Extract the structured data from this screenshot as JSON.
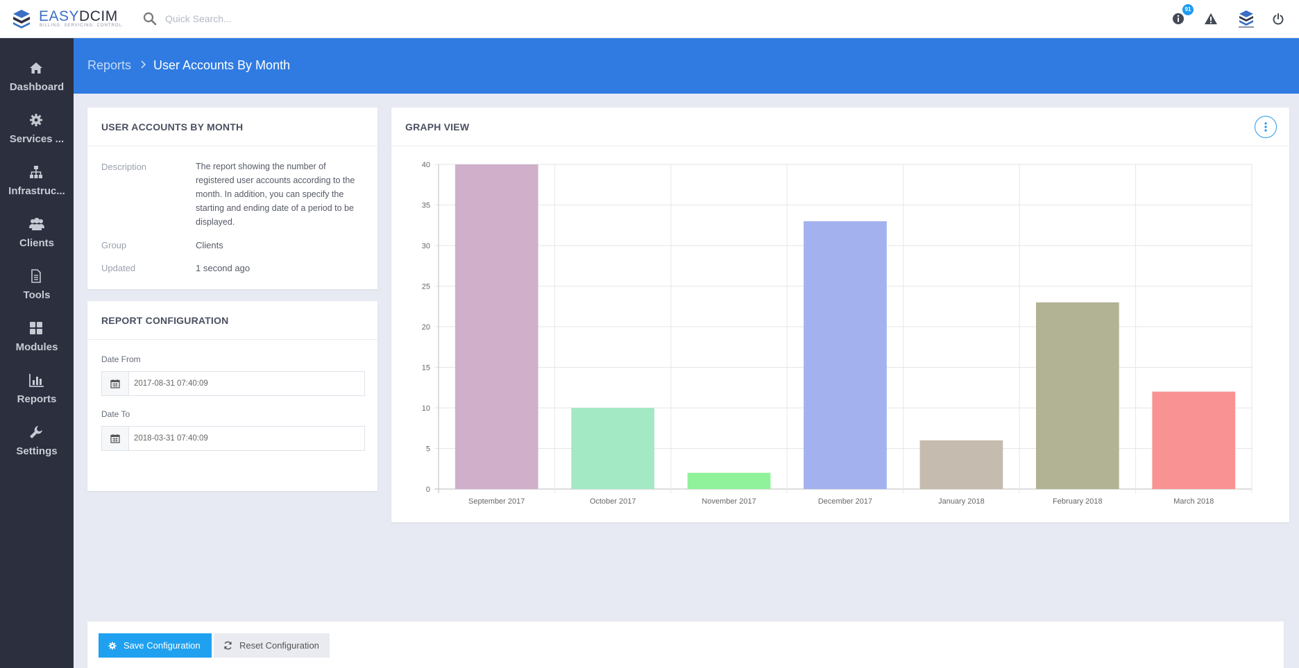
{
  "app": {
    "brand_main": "EASY",
    "brand_accent": "DCIM",
    "brand_tagline": "BILLING. SERVICING. CONTROL.",
    "search_placeholder": "Quick Search...",
    "notification_count": "91"
  },
  "sidebar": {
    "items": [
      {
        "label": "Dashboard",
        "icon": "home-icon"
      },
      {
        "label": "Services ...",
        "icon": "gear-icon"
      },
      {
        "label": "Infrastruc...",
        "icon": "sitemap-icon"
      },
      {
        "label": "Clients",
        "icon": "users-icon"
      },
      {
        "label": "Tools",
        "icon": "file-icon"
      },
      {
        "label": "Modules",
        "icon": "grid-icon"
      },
      {
        "label": "Reports",
        "icon": "bar-chart-icon"
      },
      {
        "label": "Settings",
        "icon": "wrench-icon"
      }
    ]
  },
  "breadcrumb": {
    "root": "Reports",
    "current": "User Accounts By Month"
  },
  "info_card": {
    "title": "USER ACCOUNTS BY MONTH",
    "description_label": "Description",
    "description": "The report showing the number of registered user accounts according to the month. In addition, you can specify the starting and ending date of a period to be displayed.",
    "group_label": "Group",
    "group": "Clients",
    "updated_label": "Updated",
    "updated": "1 second ago"
  },
  "config_card": {
    "title": "REPORT CONFIGURATION",
    "date_from_label": "Date From",
    "date_from": "2017-08-31 07:40:09",
    "date_to_label": "Date To",
    "date_to": "2018-03-31 07:40:09"
  },
  "graph_card": {
    "title": "GRAPH VIEW"
  },
  "chart_data": {
    "type": "bar",
    "categories": [
      "September 2017",
      "October 2017",
      "November 2017",
      "December 2017",
      "January 2018",
      "February 2018",
      "March 2018"
    ],
    "values": [
      40,
      10,
      2,
      33,
      6,
      23,
      12
    ],
    "colors": [
      "#cfafca",
      "#a3e9c4",
      "#90f29a",
      "#a3b2ee",
      "#c5bbae",
      "#b2b295",
      "#f99393"
    ],
    "ylim": [
      0,
      40
    ],
    "yticks": [
      0,
      5,
      10,
      15,
      20,
      25,
      30,
      35,
      40
    ],
    "grid": true,
    "title": "",
    "xlabel": "",
    "ylabel": ""
  },
  "actions": {
    "save_label": "Save Configuration",
    "reset_label": "Reset Configuration"
  },
  "colors": {
    "sidebar": "#2b2f3e",
    "header_band": "#2f7be1",
    "primary_button": "#1fa1f0"
  }
}
